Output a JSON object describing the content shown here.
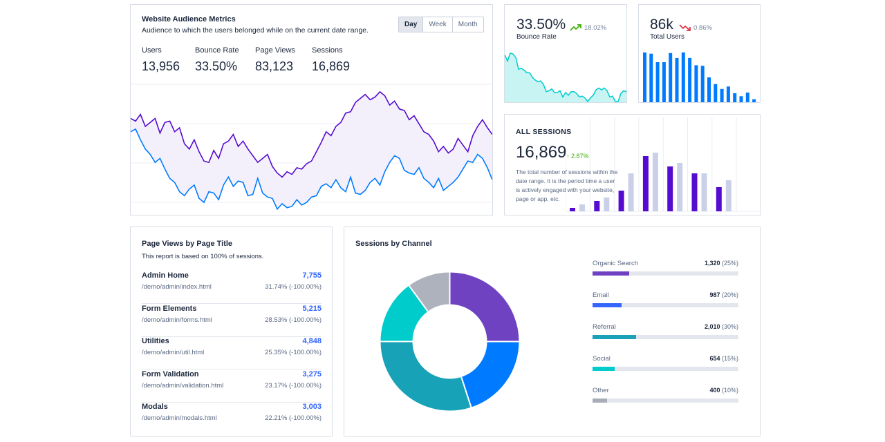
{
  "audience": {
    "title": "Website Audience Metrics",
    "subtitle": "Audience to which the users belonged while on the current date range.",
    "tabs": [
      "Day",
      "Week",
      "Month"
    ],
    "metrics": [
      {
        "label": "Users",
        "value": "13,956"
      },
      {
        "label": "Bounce Rate",
        "value": "33.50%"
      },
      {
        "label": "Page Views",
        "value": "83,123"
      },
      {
        "label": "Sessions",
        "value": "16,869"
      }
    ]
  },
  "bounce": {
    "value": "33.50%",
    "change": "18.02%",
    "label": "Bounce Rate",
    "trend": "up",
    "color": "#3bb001"
  },
  "users": {
    "value": "86k",
    "change": "0.86%",
    "label": "Total Users",
    "trend": "down",
    "color": "#dc3545"
  },
  "sessions": {
    "header": "ALL SESSIONS",
    "value": "16,869",
    "change": "2.87%",
    "description": "The total number of sessions within the date range. It is the period time a user is actively engaged with your website, page or app, etc."
  },
  "pageviews": {
    "title": "Page Views by Page Title",
    "subtitle": "This report is based on 100% of sessions.",
    "rows": [
      {
        "title": "Admin Home",
        "url": "/demo/admin/index.html",
        "value": "7,755",
        "pct": "31.74% (-100.00%)"
      },
      {
        "title": "Form Elements",
        "url": "/demo/admin/forms.html",
        "value": "5,215",
        "pct": "28.53% (-100.00%)"
      },
      {
        "title": "Utilities",
        "url": "/demo/admin/util.html",
        "value": "4,848",
        "pct": "25.35% (-100.00%)"
      },
      {
        "title": "Form Validation",
        "url": "/demo/admin/validation.html",
        "value": "3,275",
        "pct": "23.17% (-100.00%)"
      },
      {
        "title": "Modals",
        "url": "/demo/admin/modals.html",
        "value": "3,003",
        "pct": "22.21% (-100.00%)"
      }
    ]
  },
  "channel": {
    "title": "Sessions by Channel",
    "items": [
      {
        "label": "Organic Search",
        "value": "1,320",
        "pct": "(25%)",
        "fraction": 0.25,
        "color": "#6f42c1"
      },
      {
        "label": "Email",
        "value": "987",
        "pct": "(20%)",
        "fraction": 0.2,
        "color": "#3366ff"
      },
      {
        "label": "Referral",
        "value": "2,010",
        "pct": "(30%)",
        "fraction": 0.3,
        "color": "#1ca2b8"
      },
      {
        "label": "Social",
        "value": "654",
        "pct": "(15%)",
        "fraction": 0.15,
        "color": "#00cccc"
      },
      {
        "label": "Other",
        "value": "400",
        "pct": "(10%)",
        "fraction": 0.1,
        "color": "#a9adb8"
      }
    ]
  },
  "chart_data": [
    {
      "type": "pie",
      "categories": [
        "Organic Search",
        "Email",
        "Referral",
        "Social",
        "Other"
      ],
      "values": [
        25,
        20,
        30,
        15,
        10
      ],
      "colors": [
        "#6f42c1",
        "#007bff",
        "#17a2b8",
        "#00cccc",
        "#adb2bd"
      ]
    },
    {
      "type": "bar",
      "values": [
        1,
        2,
        3,
        4,
        6,
        11,
        16,
        17,
        13,
        14,
        11,
        11,
        7,
        9
      ],
      "colors": [
        "#560bd0",
        "#cad0e8"
      ]
    },
    {
      "type": "bar",
      "values": [
        83,
        81,
        67,
        67,
        82,
        74,
        83,
        74,
        62,
        61,
        42,
        31,
        23,
        27,
        16,
        11,
        17,
        6
      ],
      "color": "#007bff"
    },
    {
      "type": "area",
      "values": [
        52,
        45,
        54,
        53,
        49,
        36,
        37,
        35,
        32,
        32,
        27,
        24,
        22,
        23,
        19,
        11,
        12,
        14,
        10,
        10,
        12,
        5,
        10,
        7,
        11,
        11,
        9,
        5,
        6,
        4,
        0,
        4,
        7,
        13,
        15,
        13,
        15,
        12,
        5,
        6,
        0,
        0,
        9,
        12,
        11
      ],
      "color": "#0cc"
    },
    {
      "type": "area",
      "series": [
        {
          "values": [
            58,
            56,
            61,
            52,
            55,
            58,
            47,
            55,
            56,
            48,
            51,
            39,
            35,
            42,
            33,
            26,
            25,
            34,
            28,
            39,
            41,
            46,
            37,
            41,
            35,
            30,
            25,
            28,
            31,
            22,
            17,
            14,
            18,
            16,
            21,
            20,
            24,
            26,
            33,
            40,
            48,
            45,
            52,
            55,
            62,
            63,
            70,
            73,
            76,
            72,
            74,
            78,
            75,
            68,
            71,
            65,
            64,
            57,
            60,
            54,
            48,
            46,
            41,
            33,
            37,
            32,
            35,
            43,
            38,
            33,
            45,
            52,
            57,
            51,
            46
          ],
          "color": "#560bd0"
        },
        {
          "values": [
            48,
            50,
            42,
            35,
            31,
            25,
            28,
            20,
            13,
            10,
            3,
            0,
            5,
            8,
            -2,
            -5,
            3,
            2,
            -3,
            8,
            14,
            7,
            11,
            10,
            0,
            1,
            13,
            2,
            -1,
            -2,
            -10,
            -6,
            -9,
            -8,
            -3,
            -7,
            -5,
            -1,
            0,
            7,
            9,
            6,
            12,
            6,
            3,
            14,
            2,
            1,
            4,
            10,
            13,
            8,
            18,
            25,
            30,
            28,
            19,
            17,
            16,
            21,
            13,
            10,
            6,
            13,
            4,
            7,
            10,
            14,
            20,
            26,
            25,
            31,
            28,
            21,
            12
          ],
          "color": "#007bff"
        }
      ]
    }
  ]
}
